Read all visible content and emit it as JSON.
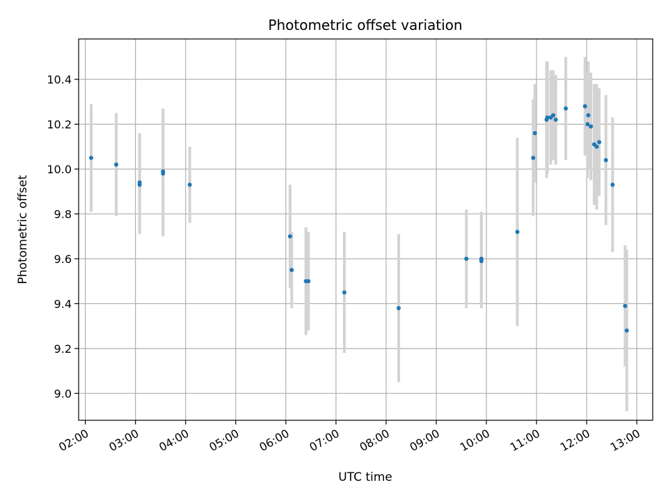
{
  "chart_data": {
    "type": "scatter",
    "title": "Photometric offset variation",
    "xlabel": "UTC time",
    "ylabel": "Photometric offset",
    "x_ticks": [
      "02:00",
      "03:00",
      "04:00",
      "05:00",
      "06:00",
      "07:00",
      "08:00",
      "09:00",
      "10:00",
      "11:00",
      "12:00",
      "13:00"
    ],
    "y_ticks": [
      9.0,
      9.2,
      9.4,
      9.6,
      9.8,
      10.0,
      10.2,
      10.4
    ],
    "xlim": [
      "01:52",
      "13:19"
    ],
    "ylim": [
      8.88,
      10.58
    ],
    "grid": true,
    "colors": {
      "points": "#1f77b4",
      "error_bars": "#d3d3d3"
    },
    "series": [
      {
        "points": [
          {
            "x": "02:07",
            "y": 10.05,
            "err": 0.24
          },
          {
            "x": "02:37",
            "y": 10.02,
            "err": 0.23
          },
          {
            "x": "03:05",
            "y": 9.94,
            "err": 0.22
          },
          {
            "x": "03:05",
            "y": 9.93,
            "err": 0.22
          },
          {
            "x": "03:33",
            "y": 9.99,
            "err": 0.28
          },
          {
            "x": "03:33",
            "y": 9.98,
            "err": 0.28
          },
          {
            "x": "04:05",
            "y": 9.93,
            "err": 0.17
          },
          {
            "x": "06:05",
            "y": 9.7,
            "err": 0.23
          },
          {
            "x": "06:07",
            "y": 9.55,
            "err": 0.17
          },
          {
            "x": "06:24",
            "y": 9.5,
            "err": 0.24
          },
          {
            "x": "06:27",
            "y": 9.5,
            "err": 0.22
          },
          {
            "x": "07:10",
            "y": 9.45,
            "err": 0.27
          },
          {
            "x": "08:15",
            "y": 9.38,
            "err": 0.33
          },
          {
            "x": "09:36",
            "y": 9.6,
            "err": 0.22
          },
          {
            "x": "09:54",
            "y": 9.6,
            "err": 0.21
          },
          {
            "x": "09:54",
            "y": 9.59,
            "err": 0.21
          },
          {
            "x": "10:37",
            "y": 9.72,
            "err": 0.42
          },
          {
            "x": "10:56",
            "y": 10.05,
            "err": 0.26
          },
          {
            "x": "10:58",
            "y": 10.16,
            "err": 0.22
          },
          {
            "x": "11:12",
            "y": 10.22,
            "err": 0.26
          },
          {
            "x": "11:13",
            "y": 10.23,
            "err": 0.25
          },
          {
            "x": "11:17",
            "y": 10.23,
            "err": 0.21
          },
          {
            "x": "11:20",
            "y": 10.24,
            "err": 0.2
          },
          {
            "x": "11:23",
            "y": 10.22,
            "err": 0.2
          },
          {
            "x": "11:35",
            "y": 10.27,
            "err": 0.23
          },
          {
            "x": "11:58",
            "y": 10.28,
            "err": 0.22
          },
          {
            "x": "12:01",
            "y": 10.2,
            "err": 0.24
          },
          {
            "x": "12:02",
            "y": 10.24,
            "err": 0.24
          },
          {
            "x": "12:05",
            "y": 10.19,
            "err": 0.24
          },
          {
            "x": "12:09",
            "y": 10.11,
            "err": 0.27
          },
          {
            "x": "12:12",
            "y": 10.1,
            "err": 0.28
          },
          {
            "x": "12:15",
            "y": 10.12,
            "err": 0.24
          },
          {
            "x": "12:23",
            "y": 10.04,
            "err": 0.29
          },
          {
            "x": "12:31",
            "y": 9.93,
            "err": 0.3
          },
          {
            "x": "12:46",
            "y": 9.39,
            "err": 0.27
          },
          {
            "x": "12:48",
            "y": 9.28,
            "err": 0.36
          }
        ]
      }
    ]
  }
}
